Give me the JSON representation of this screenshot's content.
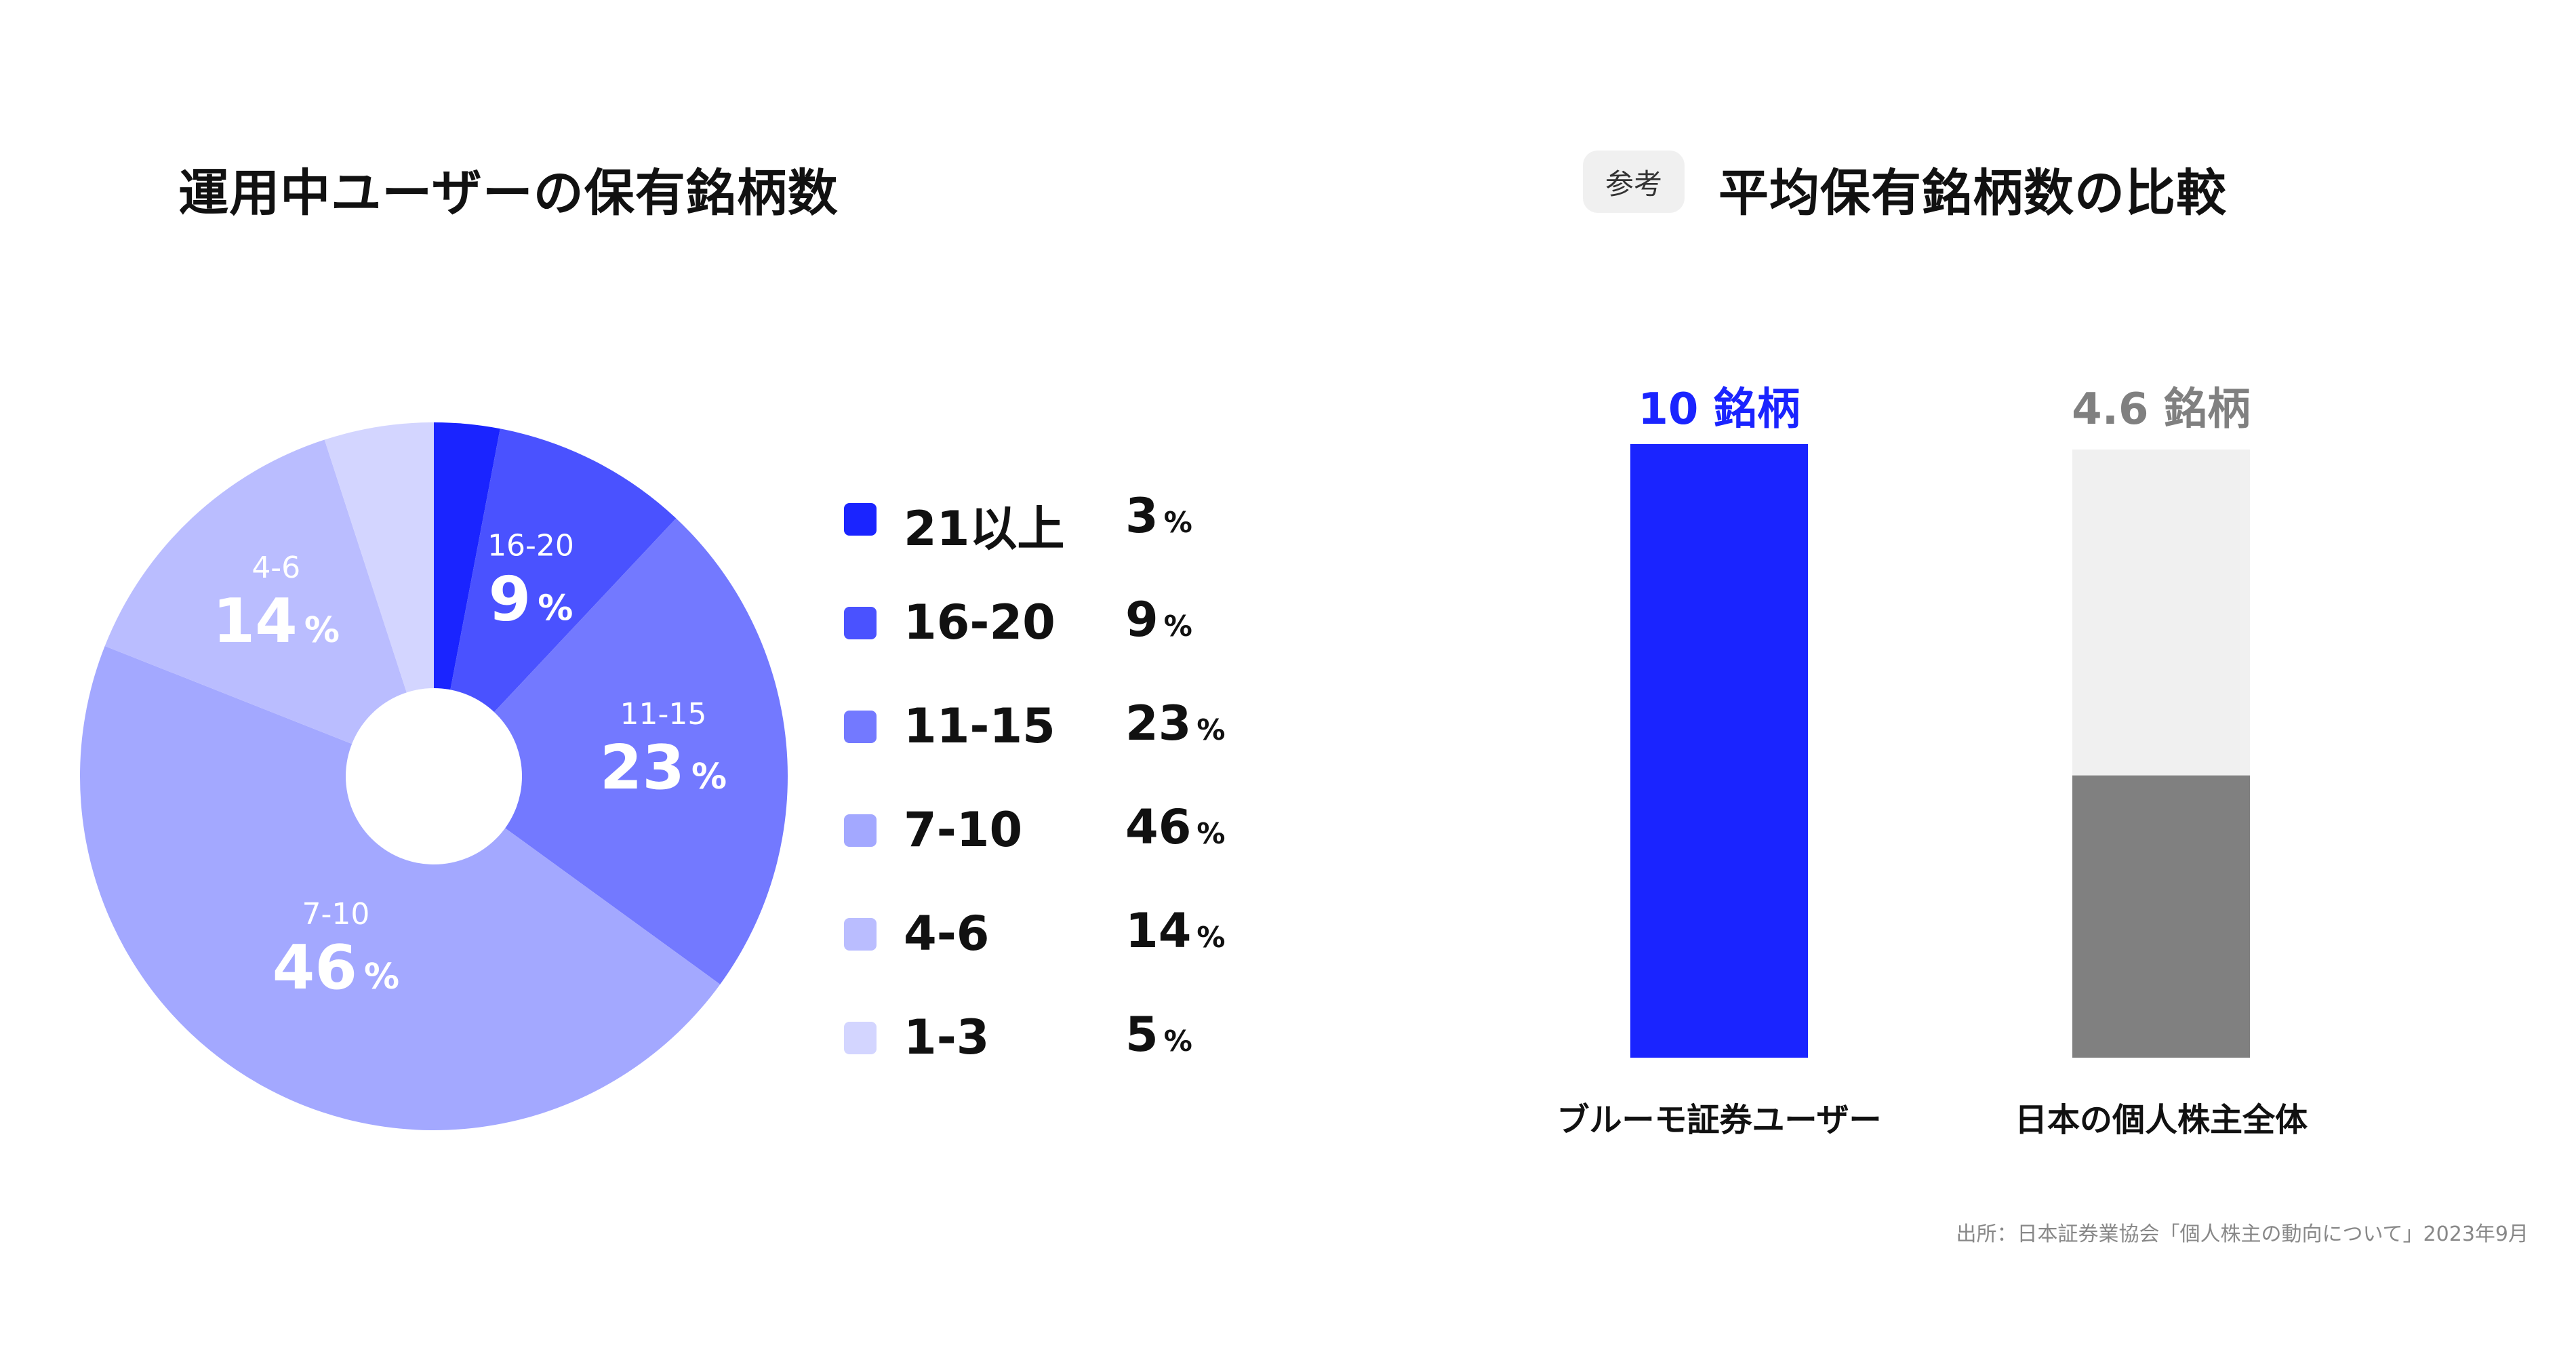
{
  "chart_data": [
    {
      "type": "pie",
      "title": "運用中ユーザーの保有銘柄数",
      "unit": "%",
      "slices": [
        {
          "label": "21以上",
          "value": 3,
          "color": "#1a24ff"
        },
        {
          "label": "16-20",
          "value": 9,
          "color": "#4a52ff"
        },
        {
          "label": "11-15",
          "value": 23,
          "color": "#7379ff"
        },
        {
          "label": "7-10",
          "value": 46,
          "color": "#a3a8ff"
        },
        {
          "label": "4-6",
          "value": 14,
          "color": "#babdff"
        },
        {
          "label": "1-3",
          "value": 5,
          "color": "#d3d5ff"
        }
      ]
    },
    {
      "type": "bar",
      "badge": "参考",
      "title": "平均保有銘柄数の比較",
      "unit": "銘柄",
      "categories": [
        "ブルーモ証券ユーザー",
        "日本の個人株主全体"
      ],
      "values": [
        10,
        4.6
      ],
      "value_labels": [
        "10",
        "4.6"
      ],
      "ylim": [
        0,
        10
      ],
      "colors": [
        "#1a24ff",
        "#808080"
      ],
      "background_color": "#f0f0f0",
      "label_colors": [
        "#1a24ff",
        "#808080"
      ]
    }
  ],
  "pct_symbol": "%",
  "source": "出所：日本証券業協会「個人株主の動向について」2023年9月"
}
